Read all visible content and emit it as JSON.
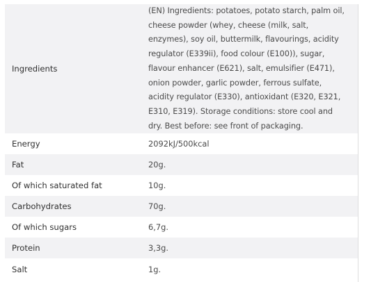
{
  "table": {
    "rows": [
      {
        "label": "Ingredients",
        "value": "(EN) Ingredients: potatoes, potato starch, palm oil, cheese powder (whey, cheese (milk, salt, enzymes), soy oil, buttermilk, flavourings, acidity regulator (E339ii), food colour (E100)), sugar, flavour enhancer (E621), salt, emulsifier (E471), onion powder, garlic powder, ferrous sulfate, acidity regulator (E330), antioxidant (E320, E321, E310, E319). Storage conditions: store cool and dry. Best before: see front of packaging."
      },
      {
        "label": "Energy",
        "value": "2092kJ/500kcal"
      },
      {
        "label": "Fat",
        "value": "20g."
      },
      {
        "label": "Of which saturated fat",
        "value": "10g."
      },
      {
        "label": "Carbohydrates",
        "value": "70g."
      },
      {
        "label": "Of which sugars",
        "value": "6,7g."
      },
      {
        "label": "Protein",
        "value": "3,3g."
      },
      {
        "label": "Salt",
        "value": "1g."
      }
    ]
  }
}
